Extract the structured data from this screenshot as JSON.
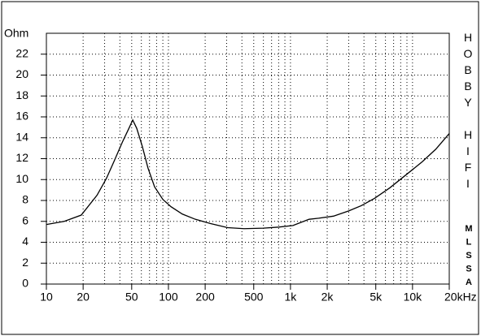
{
  "chart_data": {
    "type": "line",
    "log_x": true,
    "grid": true,
    "y_label": "Ohm",
    "annotations": [
      "HOBBY HIFI",
      "MLSSA"
    ],
    "xlim": [
      10,
      20000
    ],
    "ylim": [
      0,
      24
    ],
    "yticks": [
      0,
      2,
      4,
      6,
      8,
      10,
      12,
      14,
      16,
      18,
      20,
      22
    ],
    "xticks": [
      10,
      20,
      50,
      100,
      200,
      500,
      {
        "value": 1000,
        "label": "1k"
      },
      {
        "value": 2000,
        "label": "2k"
      },
      {
        "value": 5000,
        "label": "5k"
      },
      {
        "value": 10000,
        "label": "10k"
      },
      {
        "value": 20000,
        "label": "20kHz"
      }
    ],
    "xminorticks": [
      30,
      40,
      60,
      70,
      80,
      90,
      300,
      400,
      600,
      700,
      800,
      900,
      3000,
      4000,
      6000,
      7000,
      8000,
      9000
    ],
    "series": [
      {
        "color": "#000000",
        "x": [
          10,
          14,
          19.3,
          26,
          31,
          35.7,
          42,
          47,
          51,
          55,
          61,
          68,
          77,
          90,
          105,
          130,
          166,
          220,
          306,
          417,
          600,
          800,
          1047,
          1420,
          1700,
          2250,
          3000,
          3800,
          4880,
          6500,
          8950,
          12000,
          15500,
          20000
        ],
        "values": [
          5.7,
          6.0,
          6.6,
          8.5,
          10.1,
          11.7,
          13.6,
          14.8,
          15.7,
          14.9,
          13.2,
          11.1,
          9.3,
          8.1,
          7.4,
          6.7,
          6.2,
          5.8,
          5.4,
          5.3,
          5.35,
          5.45,
          5.6,
          6.2,
          6.3,
          6.5,
          7.0,
          7.5,
          8.2,
          9.2,
          10.5,
          11.7,
          12.9,
          14.4
        ]
      }
    ]
  }
}
